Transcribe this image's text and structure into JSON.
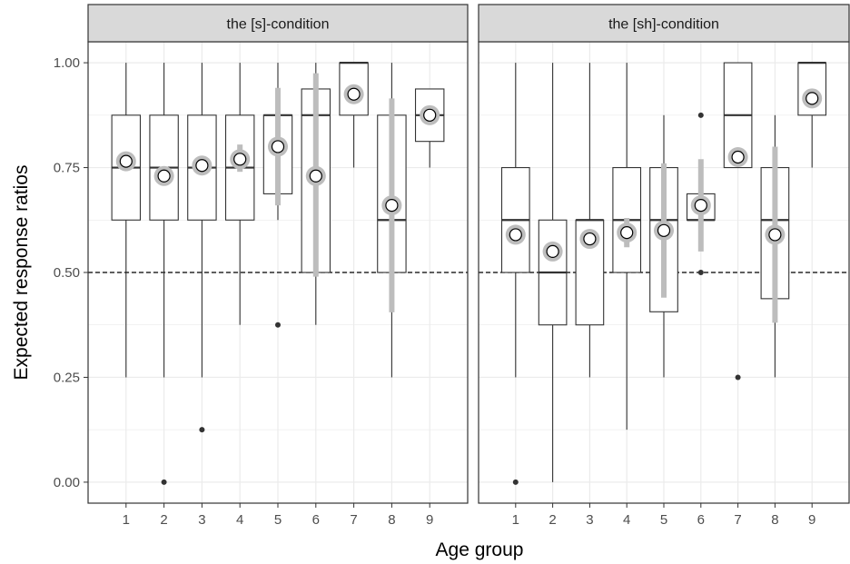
{
  "chart_data": {
    "type": "boxplot",
    "xlabel": "Age group",
    "ylabel": "Expected response ratios",
    "ylim": [
      -0.05,
      1.05
    ],
    "yticks": [
      "0.00",
      "0.25",
      "0.50",
      "0.75",
      "1.00"
    ],
    "categories": [
      "1",
      "2",
      "3",
      "4",
      "5",
      "6",
      "7",
      "8",
      "9"
    ],
    "reference_line": 0.5,
    "grid": true,
    "colors": {
      "panel_border": "#333333",
      "strip_fill": "#d9d9d9",
      "grid": "#ebebeb",
      "box": "#333333",
      "mean_marker": "#bdbdbd",
      "mean_fill": "#ffffff"
    },
    "panels": [
      {
        "title": "the [s]-condition",
        "groups": [
          {
            "x": "1",
            "min": 0.25,
            "q1": 0.625,
            "median": 0.75,
            "q3": 0.875,
            "max": 1.0,
            "outliers": [],
            "mean": 0.765,
            "ci": [
              0.765,
              0.765
            ]
          },
          {
            "x": "2",
            "min": 0.25,
            "q1": 0.625,
            "median": 0.75,
            "q3": 0.875,
            "max": 1.0,
            "outliers": [
              0.0
            ],
            "mean": 0.73,
            "ci": [
              0.73,
              0.73
            ]
          },
          {
            "x": "3",
            "min": 0.25,
            "q1": 0.625,
            "median": 0.75,
            "q3": 0.875,
            "max": 1.0,
            "outliers": [
              0.125
            ],
            "mean": 0.755,
            "ci": [
              0.755,
              0.755
            ]
          },
          {
            "x": "4",
            "min": 0.375,
            "q1": 0.625,
            "median": 0.75,
            "q3": 0.875,
            "max": 1.0,
            "outliers": [],
            "mean": 0.77,
            "ci": [
              0.74,
              0.805
            ]
          },
          {
            "x": "5",
            "min": 0.625,
            "q1": 0.6875,
            "median": 0.875,
            "q3": 0.875,
            "max": 1.0,
            "outliers": [
              0.375
            ],
            "mean": 0.8,
            "ci": [
              0.66,
              0.94
            ]
          },
          {
            "x": "6",
            "min": 0.375,
            "q1": 0.5,
            "median": 0.875,
            "q3": 0.9375,
            "max": 1.0,
            "outliers": [],
            "mean": 0.73,
            "ci": [
              0.49,
              0.975
            ]
          },
          {
            "x": "7",
            "min": 0.75,
            "q1": 0.875,
            "median": 1.0,
            "q3": 1.0,
            "max": 1.0,
            "outliers": [],
            "mean": 0.925,
            "ci": [
              0.925,
              0.925
            ]
          },
          {
            "x": "8",
            "min": 0.25,
            "q1": 0.5,
            "median": 0.625,
            "q3": 0.875,
            "max": 1.0,
            "outliers": [],
            "mean": 0.66,
            "ci": [
              0.405,
              0.915
            ]
          },
          {
            "x": "9",
            "min": 0.75,
            "q1": 0.8125,
            "median": 0.875,
            "q3": 0.9375,
            "max": 0.9375,
            "outliers": [],
            "mean": 0.875,
            "ci": [
              0.875,
              0.875
            ]
          }
        ]
      },
      {
        "title": "the [sh]-condition",
        "groups": [
          {
            "x": "1",
            "min": 0.25,
            "q1": 0.5,
            "median": 0.625,
            "q3": 0.75,
            "max": 1.0,
            "outliers": [
              0.0
            ],
            "mean": 0.59,
            "ci": [
              0.59,
              0.59
            ]
          },
          {
            "x": "2",
            "min": 0.0,
            "q1": 0.375,
            "median": 0.5,
            "q3": 0.625,
            "max": 1.0,
            "outliers": [],
            "mean": 0.55,
            "ci": [
              0.55,
              0.55
            ]
          },
          {
            "x": "3",
            "min": 0.25,
            "q1": 0.375,
            "median": 0.625,
            "q3": 0.625,
            "max": 1.0,
            "outliers": [],
            "mean": 0.58,
            "ci": [
              0.58,
              0.58
            ]
          },
          {
            "x": "4",
            "min": 0.125,
            "q1": 0.5,
            "median": 0.625,
            "q3": 0.75,
            "max": 1.0,
            "outliers": [],
            "mean": 0.595,
            "ci": [
              0.56,
              0.63
            ]
          },
          {
            "x": "5",
            "min": 0.25,
            "q1": 0.40625,
            "median": 0.625,
            "q3": 0.75,
            "max": 0.875,
            "outliers": [],
            "mean": 0.6,
            "ci": [
              0.44,
              0.76
            ]
          },
          {
            "x": "6",
            "min": 0.625,
            "q1": 0.625,
            "median": 0.625,
            "q3": 0.6875,
            "max": 0.6875,
            "outliers": [
              0.875,
              0.5
            ],
            "mean": 0.66,
            "ci": [
              0.55,
              0.77
            ]
          },
          {
            "x": "7",
            "min": 0.75,
            "q1": 0.75,
            "median": 0.875,
            "q3": 1.0,
            "max": 1.0,
            "outliers": [
              0.25
            ],
            "mean": 0.775,
            "ci": [
              0.775,
              0.775
            ]
          },
          {
            "x": "8",
            "min": 0.25,
            "q1": 0.4375,
            "median": 0.625,
            "q3": 0.75,
            "max": 0.875,
            "outliers": [],
            "mean": 0.59,
            "ci": [
              0.38,
              0.8
            ]
          },
          {
            "x": "9",
            "min": 0.75,
            "q1": 0.875,
            "median": 1.0,
            "q3": 1.0,
            "max": 1.0,
            "outliers": [],
            "mean": 0.915,
            "ci": [
              0.915,
              0.915
            ]
          }
        ]
      }
    ]
  }
}
